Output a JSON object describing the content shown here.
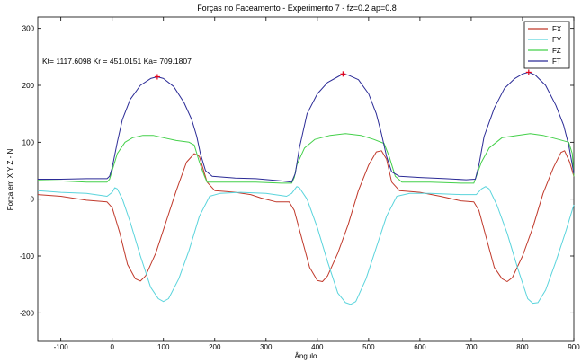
{
  "chart_data": {
    "type": "line",
    "title": "Forças no Faceamento - Experimento 7 - fz=0.2 ap=0.8",
    "xlabel": "Ângulo",
    "ylabel": "Força em X Y Z - N",
    "xlim": [
      -145,
      900
    ],
    "ylim": [
      -250,
      320
    ],
    "xticks": [
      -100,
      0,
      100,
      200,
      300,
      400,
      500,
      600,
      700,
      800,
      900
    ],
    "yticks": [
      -200,
      -100,
      0,
      100,
      200,
      300
    ],
    "grid": false,
    "legend_position": "top-right",
    "annotation": "Kt= 1117.6098 Kr = 451.0151 Ka= 709.1807",
    "peak_markers": [
      {
        "x": 88,
        "y": 215
      },
      {
        "x": 450,
        "y": 220
      },
      {
        "x": 812,
        "y": 223
      }
    ],
    "series": [
      {
        "name": "FX",
        "color": "#c0392b",
        "points": [
          [
            -145,
            8
          ],
          [
            -100,
            5
          ],
          [
            -50,
            -2
          ],
          [
            -10,
            -5
          ],
          [
            0,
            -15
          ],
          [
            15,
            -60
          ],
          [
            30,
            -115
          ],
          [
            45,
            -140
          ],
          [
            55,
            -144
          ],
          [
            65,
            -135
          ],
          [
            85,
            -95
          ],
          [
            105,
            -40
          ],
          [
            125,
            15
          ],
          [
            145,
            65
          ],
          [
            160,
            80
          ],
          [
            170,
            75
          ],
          [
            185,
            30
          ],
          [
            200,
            15
          ],
          [
            240,
            12
          ],
          [
            270,
            8
          ],
          [
            290,
            2
          ],
          [
            320,
            -5
          ],
          [
            345,
            -5
          ],
          [
            355,
            -20
          ],
          [
            370,
            -70
          ],
          [
            385,
            -120
          ],
          [
            400,
            -143
          ],
          [
            410,
            -145
          ],
          [
            420,
            -135
          ],
          [
            440,
            -95
          ],
          [
            460,
            -45
          ],
          [
            480,
            15
          ],
          [
            500,
            60
          ],
          [
            515,
            83
          ],
          [
            525,
            85
          ],
          [
            535,
            70
          ],
          [
            545,
            30
          ],
          [
            560,
            15
          ],
          [
            600,
            12
          ],
          [
            640,
            5
          ],
          [
            680,
            -3
          ],
          [
            705,
            -5
          ],
          [
            715,
            -20
          ],
          [
            730,
            -70
          ],
          [
            745,
            -120
          ],
          [
            760,
            -140
          ],
          [
            770,
            -145
          ],
          [
            780,
            -138
          ],
          [
            800,
            -100
          ],
          [
            820,
            -50
          ],
          [
            840,
            10
          ],
          [
            860,
            55
          ],
          [
            875,
            82
          ],
          [
            882,
            85
          ],
          [
            892,
            65
          ],
          [
            900,
            40
          ]
        ]
      },
      {
        "name": "FY",
        "color": "#5ad4dc",
        "points": [
          [
            -145,
            15
          ],
          [
            -100,
            12
          ],
          [
            -50,
            10
          ],
          [
            -10,
            5
          ],
          [
            0,
            12
          ],
          [
            5,
            20
          ],
          [
            10,
            18
          ],
          [
            20,
            0
          ],
          [
            35,
            -40
          ],
          [
            55,
            -100
          ],
          [
            75,
            -155
          ],
          [
            90,
            -175
          ],
          [
            100,
            -180
          ],
          [
            110,
            -175
          ],
          [
            130,
            -140
          ],
          [
            150,
            -90
          ],
          [
            170,
            -30
          ],
          [
            190,
            5
          ],
          [
            210,
            10
          ],
          [
            250,
            12
          ],
          [
            300,
            10
          ],
          [
            340,
            5
          ],
          [
            350,
            10
          ],
          [
            360,
            22
          ],
          [
            365,
            20
          ],
          [
            380,
            0
          ],
          [
            400,
            -50
          ],
          [
            420,
            -110
          ],
          [
            440,
            -165
          ],
          [
            455,
            -182
          ],
          [
            465,
            -185
          ],
          [
            475,
            -180
          ],
          [
            495,
            -140
          ],
          [
            515,
            -85
          ],
          [
            535,
            -30
          ],
          [
            555,
            5
          ],
          [
            580,
            10
          ],
          [
            620,
            10
          ],
          [
            680,
            8
          ],
          [
            710,
            8
          ],
          [
            720,
            18
          ],
          [
            728,
            22
          ],
          [
            735,
            18
          ],
          [
            750,
            -10
          ],
          [
            770,
            -60
          ],
          [
            790,
            -120
          ],
          [
            810,
            -175
          ],
          [
            820,
            -183
          ],
          [
            830,
            -182
          ],
          [
            845,
            -160
          ],
          [
            865,
            -110
          ],
          [
            885,
            -55
          ],
          [
            900,
            -10
          ]
        ]
      },
      {
        "name": "FZ",
        "color": "#44d04a",
        "points": [
          [
            -145,
            33
          ],
          [
            -100,
            32
          ],
          [
            -50,
            30
          ],
          [
            -10,
            30
          ],
          [
            -5,
            35
          ],
          [
            0,
            50
          ],
          [
            10,
            80
          ],
          [
            25,
            100
          ],
          [
            40,
            108
          ],
          [
            60,
            112
          ],
          [
            80,
            112
          ],
          [
            100,
            108
          ],
          [
            125,
            103
          ],
          [
            150,
            100
          ],
          [
            160,
            95
          ],
          [
            170,
            65
          ],
          [
            180,
            40
          ],
          [
            185,
            30
          ],
          [
            220,
            30
          ],
          [
            280,
            30
          ],
          [
            330,
            28
          ],
          [
            350,
            28
          ],
          [
            355,
            38
          ],
          [
            360,
            60
          ],
          [
            375,
            90
          ],
          [
            395,
            105
          ],
          [
            425,
            112
          ],
          [
            455,
            115
          ],
          [
            485,
            112
          ],
          [
            510,
            105
          ],
          [
            530,
            98
          ],
          [
            540,
            75
          ],
          [
            552,
            40
          ],
          [
            565,
            30
          ],
          [
            620,
            30
          ],
          [
            680,
            28
          ],
          [
            705,
            28
          ],
          [
            710,
            40
          ],
          [
            720,
            65
          ],
          [
            735,
            90
          ],
          [
            760,
            108
          ],
          [
            790,
            112
          ],
          [
            815,
            115
          ],
          [
            840,
            112
          ],
          [
            870,
            105
          ],
          [
            890,
            100
          ],
          [
            897,
            80
          ],
          [
            900,
            40
          ]
        ]
      },
      {
        "name": "FT",
        "color": "#2b2b96",
        "points": [
          [
            -145,
            35
          ],
          [
            -100,
            35
          ],
          [
            -50,
            36
          ],
          [
            -10,
            36
          ],
          [
            -5,
            40
          ],
          [
            0,
            55
          ],
          [
            10,
            100
          ],
          [
            20,
            140
          ],
          [
            35,
            175
          ],
          [
            55,
            200
          ],
          [
            75,
            212
          ],
          [
            88,
            215
          ],
          [
            100,
            212
          ],
          [
            120,
            198
          ],
          [
            140,
            170
          ],
          [
            155,
            140
          ],
          [
            165,
            110
          ],
          [
            172,
            80
          ],
          [
            182,
            50
          ],
          [
            195,
            40
          ],
          [
            240,
            37
          ],
          [
            280,
            36
          ],
          [
            330,
            32
          ],
          [
            350,
            30
          ],
          [
            357,
            45
          ],
          [
            365,
            90
          ],
          [
            380,
            150
          ],
          [
            400,
            185
          ],
          [
            420,
            205
          ],
          [
            440,
            215
          ],
          [
            450,
            220
          ],
          [
            460,
            218
          ],
          [
            480,
            210
          ],
          [
            500,
            185
          ],
          [
            515,
            150
          ],
          [
            525,
            115
          ],
          [
            535,
            75
          ],
          [
            545,
            48
          ],
          [
            560,
            40
          ],
          [
            600,
            38
          ],
          [
            650,
            36
          ],
          [
            690,
            34
          ],
          [
            708,
            35
          ],
          [
            715,
            60
          ],
          [
            725,
            110
          ],
          [
            745,
            160
          ],
          [
            765,
            195
          ],
          [
            785,
            212
          ],
          [
            800,
            220
          ],
          [
            812,
            223
          ],
          [
            825,
            218
          ],
          [
            845,
            200
          ],
          [
            865,
            165
          ],
          [
            880,
            130
          ],
          [
            890,
            95
          ],
          [
            897,
            60
          ],
          [
            900,
            45
          ]
        ]
      }
    ]
  }
}
